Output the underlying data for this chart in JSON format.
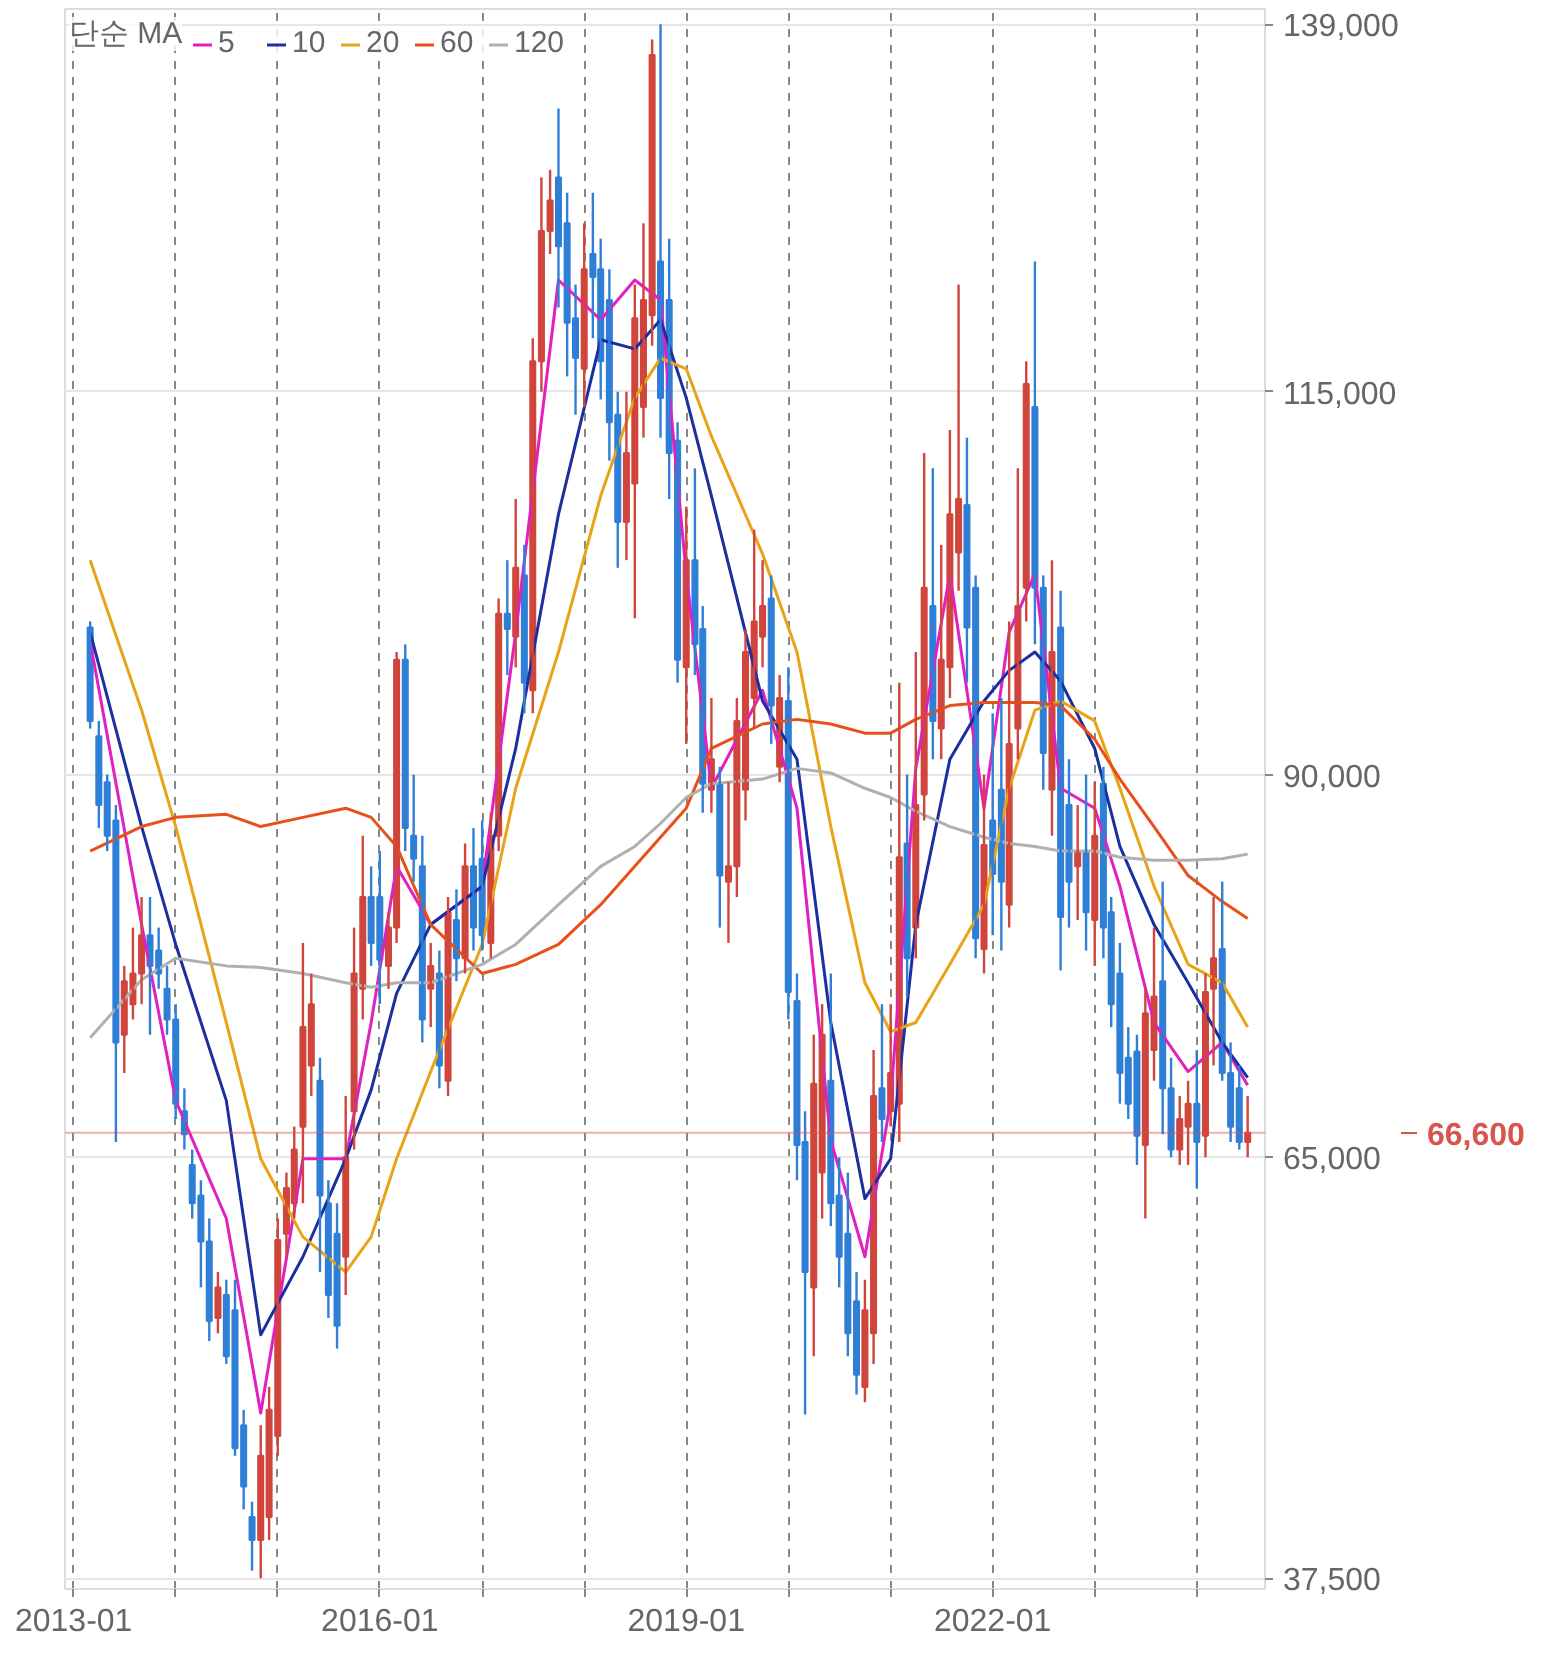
{
  "chart_data": {
    "type": "candlestick",
    "legend_title": "단순 MA",
    "x": [
      "2013-03",
      "2013-04",
      "2013-05",
      "2013-06",
      "2013-07",
      "2013-08",
      "2013-09",
      "2013-10",
      "2013-11",
      "2013-12",
      "2014-01",
      "2014-02",
      "2014-03",
      "2014-04",
      "2014-05",
      "2014-06",
      "2014-07",
      "2014-08",
      "2014-09",
      "2014-10",
      "2014-11",
      "2014-12",
      "2015-01",
      "2015-02",
      "2015-03",
      "2015-04",
      "2015-05",
      "2015-06",
      "2015-07",
      "2015-08",
      "2015-09",
      "2015-10",
      "2015-11",
      "2015-12",
      "2016-01",
      "2016-02",
      "2016-03",
      "2016-04",
      "2016-05",
      "2016-06",
      "2016-07",
      "2016-08",
      "2016-09",
      "2016-10",
      "2016-11",
      "2016-12",
      "2017-01",
      "2017-02",
      "2017-03",
      "2017-04",
      "2017-05",
      "2017-06",
      "2017-07",
      "2017-08",
      "2017-09",
      "2017-10",
      "2017-11",
      "2017-12",
      "2018-01",
      "2018-02",
      "2018-03",
      "2018-04",
      "2018-05",
      "2018-06",
      "2018-07",
      "2018-08",
      "2018-09",
      "2018-10",
      "2018-11",
      "2018-12",
      "2019-01",
      "2019-02",
      "2019-03",
      "2019-04",
      "2019-05",
      "2019-06",
      "2019-07",
      "2019-08",
      "2019-09",
      "2019-10",
      "2019-11",
      "2019-12",
      "2020-01",
      "2020-02",
      "2020-03",
      "2020-04",
      "2020-05",
      "2020-06",
      "2020-07",
      "2020-08",
      "2020-09",
      "2020-10",
      "2020-11",
      "2020-12",
      "2021-01",
      "2021-02",
      "2021-03",
      "2021-04",
      "2021-05",
      "2021-06",
      "2021-07",
      "2021-08",
      "2021-09",
      "2021-10",
      "2021-11",
      "2021-12",
      "2022-01",
      "2022-02",
      "2022-03",
      "2022-04",
      "2022-05",
      "2022-06",
      "2022-07",
      "2022-08",
      "2022-09",
      "2022-10",
      "2022-11",
      "2022-12",
      "2023-01",
      "2023-02",
      "2023-03",
      "2023-04",
      "2023-05",
      "2023-06",
      "2023-07",
      "2023-08",
      "2023-09",
      "2023-10",
      "2023-11",
      "2023-12",
      "2024-01",
      "2024-02",
      "2024-03",
      "2024-04",
      "2024-05",
      "2024-06",
      "2024-07"
    ],
    "ohlc": [
      [
        99600,
        100000,
        93000,
        93500
      ],
      [
        92500,
        93500,
        86500,
        88000
      ],
      [
        89500,
        90000,
        85000,
        86000
      ],
      [
        87000,
        88000,
        66000,
        72500
      ],
      [
        73000,
        77500,
        70500,
        76500
      ],
      [
        75000,
        80000,
        74000,
        77000
      ],
      [
        77000,
        82000,
        75000,
        79500
      ],
      [
        79500,
        82000,
        73000,
        77500
      ],
      [
        78500,
        80000,
        76000,
        77000
      ],
      [
        76000,
        77500,
        73000,
        74000
      ],
      [
        74000,
        75000,
        67500,
        68500
      ],
      [
        68000,
        69500,
        65500,
        66500
      ],
      [
        64500,
        65500,
        61000,
        62000
      ],
      [
        62500,
        63500,
        56500,
        59500
      ],
      [
        59500,
        61000,
        53000,
        54300
      ],
      [
        54500,
        57500,
        53500,
        56500
      ],
      [
        56000,
        57000,
        51500,
        52000
      ],
      [
        55000,
        57000,
        45500,
        46000
      ],
      [
        47500,
        48500,
        42000,
        43500
      ],
      [
        41500,
        42500,
        38000,
        40000
      ],
      [
        40000,
        47500,
        37500,
        45500
      ],
      [
        41500,
        50000,
        40000,
        48500
      ],
      [
        46800,
        61000,
        45500,
        59600
      ],
      [
        60000,
        64000,
        58500,
        63000
      ],
      [
        62000,
        67000,
        61000,
        65500
      ],
      [
        67000,
        79000,
        62000,
        73500
      ],
      [
        71000,
        77000,
        69000,
        75000
      ],
      [
        70000,
        71500,
        57500,
        62500
      ],
      [
        62000,
        63500,
        54500,
        56000
      ],
      [
        60000,
        62000,
        52500,
        54000
      ],
      [
        58500,
        69000,
        56000,
        65000
      ],
      [
        68000,
        80000,
        65500,
        77000
      ],
      [
        76000,
        86000,
        74000,
        82000
      ],
      [
        82000,
        84000,
        77500,
        79000
      ],
      [
        82000,
        85000,
        75000,
        77900
      ],
      [
        77500,
        81000,
        76000,
        80000
      ],
      [
        80000,
        98000,
        79000,
        97500
      ],
      [
        97500,
        98500,
        85000,
        86500
      ],
      [
        86000,
        90000,
        83000,
        84500
      ],
      [
        84000,
        86000,
        72500,
        74000
      ],
      [
        76000,
        79000,
        73500,
        77500
      ],
      [
        77000,
        78500,
        69500,
        71000
      ],
      [
        70000,
        82000,
        69000,
        81000
      ],
      [
        80500,
        82500,
        76500,
        78000
      ],
      [
        78000,
        85500,
        77000,
        84000
      ],
      [
        84000,
        86500,
        78500,
        80000
      ],
      [
        84500,
        87000,
        78500,
        79500
      ],
      [
        79000,
        87500,
        78000,
        86000
      ],
      [
        86000,
        101500,
        85000,
        100500
      ],
      [
        100500,
        104000,
        96500,
        99500
      ],
      [
        99000,
        108000,
        97000,
        103500
      ],
      [
        103000,
        105000,
        94000,
        96000
      ],
      [
        95500,
        118500,
        94000,
        117000
      ],
      [
        117000,
        129000,
        115000,
        125500
      ],
      [
        125500,
        129500,
        124000,
        127500
      ],
      [
        129000,
        133500,
        120500,
        124500
      ],
      [
        126000,
        128000,
        116000,
        119500
      ],
      [
        119800,
        122000,
        113500,
        117200
      ],
      [
        116500,
        126000,
        114000,
        123000
      ],
      [
        124000,
        128000,
        118500,
        122500
      ],
      [
        123000,
        125000,
        114500,
        117000
      ],
      [
        121000,
        123000,
        110500,
        113000
      ],
      [
        113500,
        115000,
        103500,
        106500
      ],
      [
        106500,
        115000,
        104000,
        111000
      ],
      [
        109000,
        122000,
        100200,
        119800
      ],
      [
        114000,
        126000,
        112000,
        121000
      ],
      [
        120000,
        138000,
        118000,
        137000
      ],
      [
        123500,
        139000,
        112000,
        114600
      ],
      [
        121000,
        125000,
        108000,
        111000
      ],
      [
        111800,
        113000,
        96000,
        97500
      ],
      [
        97000,
        107500,
        92000,
        104000
      ],
      [
        104000,
        110000,
        96500,
        98500
      ],
      [
        99500,
        101000,
        87500,
        89400
      ],
      [
        89000,
        95000,
        87500,
        91000
      ],
      [
        89400,
        90500,
        80000,
        83400
      ],
      [
        83000,
        89500,
        79000,
        84000
      ],
      [
        84000,
        95000,
        82000,
        93500
      ],
      [
        89000,
        99500,
        87000,
        98000
      ],
      [
        95000,
        106000,
        93000,
        100000
      ],
      [
        99000,
        104000,
        97000,
        101000
      ],
      [
        101500,
        103000,
        92000,
        94500
      ],
      [
        90500,
        96500,
        89500,
        95000
      ],
      [
        94800,
        97000,
        74000,
        75800
      ],
      [
        75200,
        77000,
        63500,
        65800
      ],
      [
        66000,
        68000,
        48200,
        57500
      ],
      [
        56500,
        73000,
        52000,
        69800
      ],
      [
        64000,
        75000,
        61000,
        73000
      ],
      [
        70000,
        77000,
        60500,
        62000
      ],
      [
        62500,
        65000,
        56500,
        58500
      ],
      [
        60000,
        64000,
        52000,
        53500
      ],
      [
        55600,
        57500,
        49500,
        50800
      ],
      [
        50000,
        57000,
        49000,
        55000
      ],
      [
        53500,
        72000,
        51500,
        69000
      ],
      [
        69500,
        75000,
        66000,
        67500
      ],
      [
        68000,
        75000,
        67000,
        70500
      ],
      [
        68500,
        96000,
        66000,
        84600
      ],
      [
        85500,
        90000,
        75500,
        78000
      ],
      [
        80000,
        98000,
        78000,
        88000
      ],
      [
        88700,
        111000,
        87000,
        102200
      ],
      [
        101000,
        110000,
        91000,
        93500
      ],
      [
        93000,
        105000,
        91000,
        97500
      ],
      [
        97000,
        112500,
        95000,
        107000
      ],
      [
        104500,
        122000,
        102000,
        108000
      ],
      [
        107600,
        112000,
        96000,
        99600
      ],
      [
        102200,
        103000,
        78000,
        79300
      ],
      [
        78600,
        90000,
        77000,
        85400
      ],
      [
        87000,
        94000,
        79500,
        83500
      ],
      [
        89000,
        95000,
        78500,
        83000
      ],
      [
        81500,
        100000,
        80000,
        92000
      ],
      [
        93000,
        110000,
        91000,
        101000
      ],
      [
        102200,
        117000,
        100000,
        115500
      ],
      [
        114000,
        123500,
        98500,
        102200
      ],
      [
        102200,
        103000,
        89000,
        91400
      ],
      [
        89000,
        104000,
        86000,
        98000
      ],
      [
        99600,
        102000,
        77200,
        80700
      ],
      [
        88000,
        91000,
        80000,
        83000
      ],
      [
        84000,
        88000,
        80500,
        85000
      ],
      [
        85000,
        90000,
        78500,
        81000
      ],
      [
        80500,
        89500,
        77500,
        86000
      ],
      [
        89400,
        90500,
        78000,
        80000
      ],
      [
        81000,
        82000,
        73500,
        75000
      ],
      [
        77000,
        79000,
        68500,
        70500
      ],
      [
        71500,
        73500,
        67500,
        68500
      ],
      [
        71900,
        73000,
        64500,
        66400
      ],
      [
        65800,
        76000,
        61000,
        74400
      ],
      [
        72000,
        80000,
        70000,
        75500
      ],
      [
        76500,
        83000,
        66500,
        69500
      ],
      [
        69500,
        71500,
        65000,
        65500
      ],
      [
        65500,
        69000,
        64500,
        67500
      ],
      [
        67000,
        70000,
        64500,
        68500
      ],
      [
        68500,
        72000,
        63000,
        66000
      ],
      [
        66400,
        77000,
        65000,
        75800
      ],
      [
        76000,
        82000,
        71000,
        78000
      ],
      [
        78600,
        83000,
        70000,
        70500
      ],
      [
        70500,
        72500,
        66000,
        67000
      ],
      [
        69500,
        71000,
        65500,
        66000
      ],
      [
        66000,
        69000,
        65000,
        66600
      ]
    ],
    "colors": [
      "#2f7fd6",
      "#2f7fd6",
      "#2f7fd6",
      "#2f7fd6",
      "#d0453c",
      "#d0453c",
      "#d0453c",
      "#2f7fd6",
      "#2f7fd6",
      "#2f7fd6",
      "#2f7fd6",
      "#2f7fd6",
      "#2f7fd6",
      "#2f7fd6",
      "#2f7fd6",
      "#d0453c",
      "#2f7fd6",
      "#2f7fd6",
      "#2f7fd6",
      "#2f7fd6",
      "#d0453c",
      "#d0453c",
      "#d0453c",
      "#d0453c",
      "#d0453c",
      "#d0453c",
      "#d0453c",
      "#2f7fd6",
      "#2f7fd6",
      "#2f7fd6",
      "#d0453c",
      "#d0453c",
      "#d0453c",
      "#2f7fd6",
      "#2f7fd6",
      "#d0453c",
      "#d0453c",
      "#2f7fd6",
      "#2f7fd6",
      "#2f7fd6",
      "#d0453c",
      "#2f7fd6",
      "#d0453c",
      "#2f7fd6",
      "#d0453c",
      "#2f7fd6",
      "#2f7fd6",
      "#d0453c",
      "#d0453c",
      "#2f7fd6",
      "#d0453c",
      "#2f7fd6",
      "#d0453c",
      "#d0453c",
      "#d0453c",
      "#2f7fd6",
      "#2f7fd6",
      "#2f7fd6",
      "#d0453c",
      "#2f7fd6",
      "#2f7fd6",
      "#2f7fd6",
      "#2f7fd6",
      "#d0453c",
      "#d0453c",
      "#d0453c",
      "#d0453c",
      "#2f7fd6",
      "#2f7fd6",
      "#2f7fd6",
      "#d0453c",
      "#2f7fd6",
      "#2f7fd6",
      "#d0453c",
      "#2f7fd6",
      "#d0453c",
      "#d0453c",
      "#d0453c",
      "#d0453c",
      "#d0453c",
      "#2f7fd6",
      "#d0453c",
      "#2f7fd6",
      "#2f7fd6",
      "#2f7fd6",
      "#d0453c",
      "#d0453c",
      "#2f7fd6",
      "#2f7fd6",
      "#2f7fd6",
      "#2f7fd6",
      "#d0453c",
      "#d0453c",
      "#2f7fd6",
      "#d0453c",
      "#d0453c",
      "#2f7fd6",
      "#d0453c",
      "#d0453c",
      "#2f7fd6",
      "#d0453c",
      "#d0453c",
      "#d0453c",
      "#2f7fd6",
      "#2f7fd6",
      "#d0453c",
      "#2f7fd6",
      "#2f7fd6",
      "#d0453c",
      "#d0453c",
      "#d0453c",
      "#2f7fd6",
      "#2f7fd6",
      "#d0453c",
      "#2f7fd6",
      "#2f7fd6",
      "#d0453c",
      "#2f7fd6",
      "#d0453c",
      "#2f7fd6",
      "#2f7fd6",
      "#2f7fd6",
      "#2f7fd6",
      "#2f7fd6",
      "#d0453c",
      "#d0453c",
      "#2f7fd6",
      "#2f7fd6",
      "#d0453c",
      "#d0453c",
      "#2f7fd6",
      "#d0453c",
      "#d0453c",
      "#2f7fd6",
      "#2f7fd6",
      "#2f7fd6",
      "#d0453c"
    ],
    "series": [
      {
        "name": "5",
        "type": "line",
        "color": "#e020c0",
        "x": [
          "2013-03",
          "2013-09",
          "2014-01",
          "2014-07",
          "2014-11",
          "2015-04",
          "2015-09",
          "2015-12",
          "2016-03",
          "2016-07",
          "2017-01",
          "2017-05",
          "2017-10",
          "2018-03",
          "2018-07",
          "2018-10",
          "2019-01",
          "2019-04",
          "2019-10",
          "2020-02",
          "2020-06",
          "2020-10",
          "2021-01",
          "2021-04",
          "2021-08",
          "2021-12",
          "2022-03",
          "2022-06",
          "2022-09",
          "2023-01",
          "2023-04",
          "2023-08",
          "2023-12",
          "2024-04",
          "2024-07"
        ],
        "values": [
          98700,
          80200,
          68700,
          61000,
          48300,
          64900,
          64900,
          73800,
          84000,
          80200,
          82700,
          99300,
          122300,
          119700,
          122300,
          121000,
          103100,
          89100,
          95500,
          87800,
          66100,
          58500,
          68700,
          90400,
          103100,
          87800,
          99300,
          103100,
          89100,
          87800,
          82700,
          73800,
          70600,
          72500,
          69700
        ]
      },
      {
        "name": "10",
        "type": "line",
        "color": "#1a2fa0",
        "x": [
          "2013-03",
          "2013-09",
          "2014-01",
          "2014-07",
          "2014-11",
          "2015-04",
          "2015-09",
          "2015-12",
          "2016-03",
          "2016-07",
          "2017-01",
          "2017-05",
          "2017-10",
          "2018-03",
          "2018-07",
          "2018-10",
          "2019-01",
          "2019-04",
          "2019-10",
          "2020-02",
          "2020-06",
          "2020-10",
          "2021-01",
          "2021-04",
          "2021-08",
          "2021-12",
          "2022-03",
          "2022-06",
          "2022-09",
          "2023-01",
          "2023-04",
          "2023-08",
          "2023-12",
          "2024-04",
          "2024-07"
        ],
        "values": [
          99300,
          86600,
          78900,
          68700,
          53400,
          58500,
          64900,
          69400,
          75700,
          80200,
          82700,
          91700,
          107000,
          118400,
          117800,
          119700,
          114600,
          108200,
          94800,
          91000,
          73800,
          62300,
          64900,
          80200,
          91000,
          94800,
          96800,
          98000,
          96100,
          91700,
          85300,
          80200,
          76400,
          72500,
          70200
        ]
      },
      {
        "name": "20",
        "type": "line",
        "color": "#e8a317",
        "x": [
          "2013-03",
          "2013-09",
          "2014-01",
          "2014-07",
          "2014-11",
          "2015-04",
          "2015-09",
          "2015-12",
          "2016-03",
          "2016-07",
          "2017-01",
          "2017-05",
          "2017-10",
          "2018-03",
          "2018-07",
          "2018-10",
          "2019-01",
          "2019-04",
          "2019-10",
          "2020-02",
          "2020-06",
          "2020-10",
          "2021-01",
          "2021-04",
          "2021-08",
          "2021-12",
          "2022-03",
          "2022-06",
          "2022-09",
          "2023-01",
          "2023-04",
          "2023-08",
          "2023-12",
          "2024-04",
          "2024-07"
        ],
        "values": [
          104000,
          94200,
          86600,
          73800,
          64900,
          59800,
          57500,
          59800,
          64900,
          70600,
          78900,
          89100,
          98000,
          108200,
          114600,
          117200,
          116500,
          112100,
          104400,
          98000,
          86600,
          76400,
          73200,
          73800,
          77600,
          81500,
          89100,
          94200,
          94800,
          93500,
          89100,
          82700,
          77600,
          76400,
          73500
        ]
      },
      {
        "name": "60",
        "type": "line",
        "color": "#e8501a",
        "x": [
          "2013-03",
          "2013-09",
          "2014-01",
          "2014-07",
          "2014-11",
          "2015-04",
          "2015-09",
          "2015-12",
          "2016-03",
          "2016-07",
          "2017-01",
          "2017-05",
          "2017-10",
          "2018-03",
          "2018-07",
          "2018-10",
          "2019-01",
          "2019-04",
          "2019-10",
          "2020-02",
          "2020-06",
          "2020-10",
          "2021-01",
          "2021-04",
          "2021-08",
          "2021-12",
          "2022-03",
          "2022-06",
          "2022-09",
          "2023-01",
          "2023-04",
          "2023-08",
          "2023-12",
          "2024-04",
          "2024-07"
        ],
        "values": [
          85000,
          86600,
          87200,
          87400,
          86600,
          87200,
          87800,
          87200,
          85300,
          80200,
          77000,
          77600,
          78900,
          81500,
          84000,
          85900,
          87800,
          91700,
          93300,
          93600,
          93300,
          92700,
          92700,
          93600,
          94500,
          94700,
          94700,
          94700,
          94500,
          92300,
          89700,
          86600,
          83400,
          81700,
          80600
        ]
      },
      {
        "name": "120",
        "type": "line",
        "color": "#b0b0b0",
        "x": [
          "2013-03",
          "2013-09",
          "2014-01",
          "2014-07",
          "2014-11",
          "2015-04",
          "2015-09",
          "2015-12",
          "2016-03",
          "2016-07",
          "2017-01",
          "2017-05",
          "2017-10",
          "2018-03",
          "2018-07",
          "2018-10",
          "2019-01",
          "2019-04",
          "2019-10",
          "2020-02",
          "2020-06",
          "2020-10",
          "2021-01",
          "2021-04",
          "2021-08",
          "2021-12",
          "2022-03",
          "2022-06",
          "2022-09",
          "2023-01",
          "2023-04",
          "2023-08",
          "2023-12",
          "2024-04",
          "2024-07"
        ],
        "values": [
          72800,
          76600,
          78000,
          77500,
          77400,
          77000,
          76400,
          76100,
          76400,
          76400,
          77600,
          78900,
          81500,
          84000,
          85300,
          86800,
          88500,
          89400,
          89700,
          90400,
          90100,
          89100,
          88500,
          87600,
          86600,
          85900,
          85500,
          85300,
          85000,
          85000,
          84600,
          84400,
          84400,
          84500,
          84800
        ]
      }
    ],
    "xlim": [
      "2012-12",
      "2024-09"
    ],
    "xticks": [
      {
        "value": "2013-01",
        "label": "2013-01"
      },
      {
        "value": "2014-01",
        "label": null
      },
      {
        "value": "2015-01",
        "label": null
      },
      {
        "value": "2016-01",
        "label": "2016-01"
      },
      {
        "value": "2017-01",
        "label": null
      },
      {
        "value": "2018-01",
        "label": null
      },
      {
        "value": "2019-01",
        "label": "2019-01"
      },
      {
        "value": "2020-01",
        "label": null
      },
      {
        "value": "2021-01",
        "label": null
      },
      {
        "value": "2022-01",
        "label": "2022-01"
      },
      {
        "value": "2023-01",
        "label": null
      },
      {
        "value": "2024-01",
        "label": null
      }
    ],
    "ylim": [
      36800,
      140000
    ],
    "yticks": [
      {
        "value": 37500,
        "label": "37,500"
      },
      {
        "value": 65000,
        "label": "65,000"
      },
      {
        "value": 90000,
        "label": "90,000"
      },
      {
        "value": 115000,
        "label": "115,000"
      },
      {
        "value": 139000,
        "label": "139,000"
      }
    ],
    "ref_lines": [
      {
        "axis": "y",
        "value": 66600,
        "label": "66,600",
        "color": "#d9534f"
      }
    ],
    "grid": true,
    "legend": "top left"
  }
}
